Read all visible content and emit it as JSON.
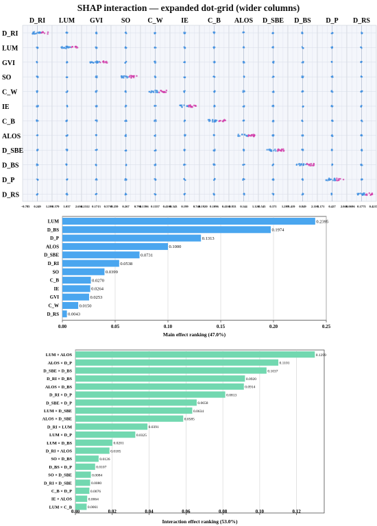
{
  "title": "SHAP interaction — expanded dot-grid (wider columns)",
  "colors": {
    "main_bar": "#4aa6ef",
    "inter_bar": "#72d8b0",
    "dot_base": "#3f8fe0",
    "dot_hot": "#d03aa8"
  },
  "chart_data": [
    {
      "type": "scatter",
      "name": "shap-dot-grid",
      "features": [
        "D_RI",
        "LUM",
        "GVI",
        "SO",
        "C_W",
        "IE",
        "C_B",
        "ALOS",
        "D_SBE",
        "D_BS",
        "D_P",
        "D_RS"
      ],
      "column_ticks": [
        [
          "−0.785",
          "0.249",
          "1.283"
        ],
        [
          "−0.579",
          "1.037",
          "2.654"
        ],
        [
          "−0.2312",
          "0.1713",
          "0.5737"
        ],
        [
          "−0.259",
          "0.267",
          "0.792"
        ],
        [
          "−0.1396",
          "0.1357",
          "0.4109"
        ],
        [
          "−0.343",
          "0.199",
          "0.741"
        ],
        [
          "−0.1920",
          "0.1096",
          "0.4112"
        ],
        [
          "−0.833",
          "0.144",
          "1.121"
        ],
        [
          "−0.545",
          "0.371",
          "1.287"
        ],
        [
          "−0.419",
          "0.849",
          "2.118"
        ],
        [
          "−1.171",
          "0.427",
          "2.026"
        ],
        [
          "−0.0696",
          "0.1771",
          "0.4237"
        ]
      ]
    },
    {
      "type": "bar",
      "name": "main-effects",
      "orientation": "horizontal",
      "categories": [
        "LUM",
        "D_BS",
        "D_P",
        "ALOS",
        "D_SBE",
        "D_RI",
        "SO",
        "C_B",
        "IE",
        "GVI",
        "C_W",
        "D_RS"
      ],
      "values": [
        0.2395,
        0.1974,
        0.1313,
        0.1,
        0.0731,
        0.0538,
        0.0399,
        0.027,
        0.0264,
        0.0253,
        0.015,
        0.0043
      ],
      "value_labels": [
        "0.2395",
        "0.1974",
        "0.1313",
        "0.1000",
        "0.0731",
        "0.0538",
        "0.0399",
        "0.0270",
        "0.0264",
        "0.0253",
        "0.0150",
        "0.0043"
      ],
      "xlabel": "Main effect ranking (47.0%)",
      "xlim": [
        0,
        0.25
      ],
      "xticks": [
        "0.00",
        "0.05",
        "0.10",
        "0.15",
        "0.20",
        "0.25"
      ],
      "grid": true
    },
    {
      "type": "bar",
      "name": "interaction-effects",
      "orientation": "horizontal",
      "categories": [
        "LUM × ALOS",
        "ALOS × D_P",
        "D_SBE × D_BS",
        "D_RI × D_BS",
        "ALOS × D_BS",
        "D_RI × D_P",
        "D_SBE × D_P",
        "LUM × D_SBE",
        "ALOS × D_SBE",
        "D_RI × LUM",
        "LUM × D_P",
        "LUM × D_BS",
        "D_RI × ALOS",
        "SO × D_BS",
        "D_BS × D_P",
        "SO × D_SBE",
        "D_RI × D_SBE",
        "C_B × D_P",
        "IE × ALOS",
        "LUM × C_B"
      ],
      "values": [
        0.1299,
        0.1101,
        0.1037,
        0.092,
        0.0914,
        0.0813,
        0.0658,
        0.0634,
        0.0585,
        0.0391,
        0.0325,
        0.0201,
        0.0185,
        0.0126,
        0.0107,
        0.0084,
        0.008,
        0.0076,
        0.0064,
        0.0061
      ],
      "value_labels": [
        "0.1299",
        "0.1101",
        "0.1037",
        "0.0920",
        "0.0914",
        "0.0813",
        "0.0658",
        "0.0634",
        "0.0585",
        "0.0391",
        "0.0325",
        "0.0201",
        "0.0185",
        "0.0126",
        "0.0107",
        "0.0084",
        "0.0080",
        "0.0076",
        "0.0064",
        "0.0061"
      ],
      "xlabel": "Interaction effect ranking (53.0%)",
      "xlim": [
        0,
        0.135
      ],
      "xticks": [
        "0.00",
        "0.02",
        "0.04",
        "0.06",
        "0.08",
        "0.10",
        "0.12"
      ],
      "grid": true
    }
  ]
}
